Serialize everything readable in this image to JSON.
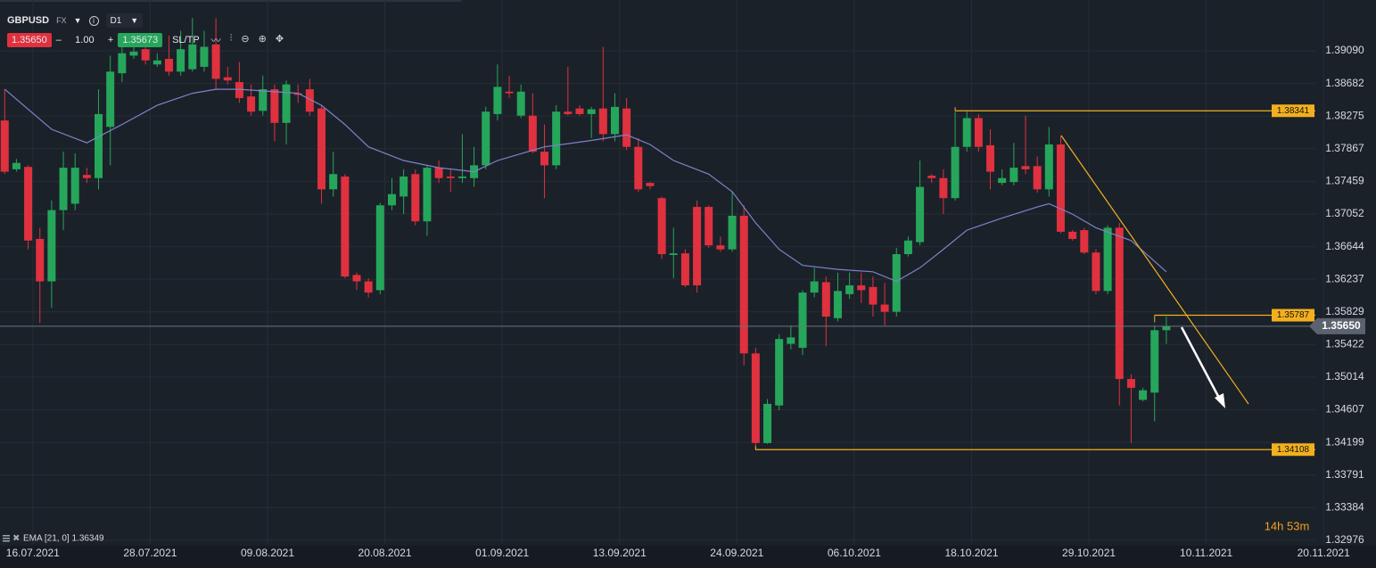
{
  "toolbar": {
    "symbol": "GBPUSD",
    "market": "FX",
    "timeframe": "D1",
    "sell": "1.35650",
    "minus": "–",
    "quantity": "1.00",
    "plus": "+",
    "buy": "1.35673",
    "sltp": "SL/TP"
  },
  "chart_data": {
    "type": "candlestick",
    "open": [
      1.3822,
      1.3761,
      1.3764,
      1.3674,
      1.3621,
      1.371,
      1.3718,
      1.3754,
      1.375,
      1.3814,
      1.3881,
      1.3903,
      1.3911,
      1.3892,
      1.3899,
      1.3883,
      1.3886,
      1.3889,
      1.3917,
      1.3876,
      1.387,
      1.3852,
      1.3834,
      1.3861,
      1.3819,
      1.3856,
      1.3861,
      1.3837,
      1.3736,
      1.3752,
      1.3629,
      1.3621,
      1.361,
      1.3716,
      1.3727,
      1.3755,
      1.3696,
      1.3763,
      1.3752,
      1.375,
      1.375,
      1.3766,
      1.383,
      1.3858,
      1.3828,
      1.3828,
      1.3783,
      1.3766,
      1.3833,
      1.3837,
      1.383,
      1.3837,
      1.3805,
      1.3837,
      1.3789,
      1.3744,
      1.3725,
      1.3654,
      1.3656,
      1.3714,
      1.3714,
      1.3666,
      1.3661,
      1.3703,
      1.3531,
      1.3419,
      1.3466,
      1.3543,
      1.3538,
      1.3607,
      1.362,
      1.3575,
      1.3605,
      1.3616,
      1.3614,
      1.3592,
      1.3583,
      1.3655,
      1.367,
      1.3753,
      1.375,
      1.3725,
      1.3789,
      1.3825,
      1.3791,
      1.3744,
      1.3745,
      1.3765,
      1.3765,
      1.3736,
      1.3792,
      1.3683,
      1.3685,
      1.3657,
      1.3609,
      1.3688,
      1.3499,
      1.3473,
      1.3482,
      1.356
    ],
    "high": [
      1.3861,
      1.3774,
      1.3766,
      1.3688,
      1.3722,
      1.3783,
      1.3781,
      1.3763,
      1.3861,
      1.3903,
      1.3917,
      1.3917,
      1.3928,
      1.3906,
      1.3928,
      1.3934,
      1.395,
      1.3934,
      1.395,
      1.3889,
      1.3895,
      1.3867,
      1.3878,
      1.3867,
      1.3872,
      1.3867,
      1.3874,
      1.3841,
      1.3783,
      1.3755,
      1.3632,
      1.3625,
      1.3719,
      1.375,
      1.3761,
      1.3761,
      1.3766,
      1.3772,
      1.3761,
      1.3805,
      1.3789,
      1.3839,
      1.3892,
      1.3878,
      1.3867,
      1.3856,
      1.3817,
      1.3841,
      1.3889,
      1.3841,
      1.3839,
      1.3914,
      1.3856,
      1.385,
      1.38,
      1.3745,
      1.3727,
      1.3688,
      1.3661,
      1.3722,
      1.3716,
      1.3677,
      1.3733,
      1.3716,
      1.3538,
      1.3474,
      1.3555,
      1.3566,
      1.361,
      1.3638,
      1.3627,
      1.3632,
      1.3632,
      1.3632,
      1.3627,
      1.3619,
      1.3663,
      1.3677,
      1.3772,
      1.3755,
      1.3761,
      1.3833,
      1.3833,
      1.383,
      1.3811,
      1.3761,
      1.3794,
      1.3828,
      1.3777,
      1.3814,
      1.3803,
      1.3685,
      1.3688,
      1.3661,
      1.3691,
      1.3694,
      1.3505,
      1.3488,
      1.3566,
      1.3577
    ],
    "low": [
      1.3755,
      1.3758,
      1.3661,
      1.3569,
      1.3588,
      1.3685,
      1.371,
      1.3744,
      1.3736,
      1.3766,
      1.387,
      1.3899,
      1.3892,
      1.3889,
      1.3878,
      1.3878,
      1.3883,
      1.3883,
      1.3861,
      1.3867,
      1.3844,
      1.3828,
      1.3828,
      1.3796,
      1.3792,
      1.3844,
      1.3828,
      1.3718,
      1.3727,
      1.3625,
      1.361,
      1.3601,
      1.3605,
      1.371,
      1.3705,
      1.3691,
      1.3678,
      1.3744,
      1.3733,
      1.3744,
      1.3739,
      1.3761,
      1.3822,
      1.385,
      1.3825,
      1.3781,
      1.3725,
      1.3761,
      1.3828,
      1.3828,
      1.38,
      1.3796,
      1.3796,
      1.3785,
      1.3733,
      1.3736,
      1.3649,
      1.3625,
      1.3614,
      1.3607,
      1.3663,
      1.3658,
      1.3658,
      1.3516,
      1.341,
      1.3418,
      1.346,
      1.3536,
      1.3529,
      1.3601,
      1.354,
      1.3571,
      1.3599,
      1.3594,
      1.3577,
      1.3566,
      1.3577,
      1.3652,
      1.3666,
      1.3744,
      1.3705,
      1.3722,
      1.3783,
      1.3783,
      1.3736,
      1.3741,
      1.3741,
      1.3755,
      1.3732,
      1.3727,
      1.3681,
      1.3672,
      1.3655,
      1.3605,
      1.3605,
      1.3466,
      1.3419,
      1.3471,
      1.3446,
      1.3543
    ],
    "close": [
      1.3758,
      1.3769,
      1.3672,
      1.3621,
      1.371,
      1.3763,
      1.3763,
      1.375,
      1.383,
      1.3883,
      1.3906,
      1.3908,
      1.3897,
      1.3897,
      1.3883,
      1.3911,
      1.3917,
      1.3914,
      1.3874,
      1.3872,
      1.385,
      1.3833,
      1.3861,
      1.3819,
      1.3867,
      1.3854,
      1.3833,
      1.3736,
      1.3755,
      1.3627,
      1.3621,
      1.3607,
      1.3716,
      1.373,
      1.3752,
      1.3696,
      1.3763,
      1.375,
      1.375,
      1.3752,
      1.3766,
      1.3833,
      1.3864,
      1.3856,
      1.3858,
      1.3783,
      1.3766,
      1.3833,
      1.383,
      1.383,
      1.3836,
      1.3805,
      1.3839,
      1.3789,
      1.3736,
      1.374,
      1.3655,
      1.3656,
      1.3616,
      1.3616,
      1.3666,
      1.3661,
      1.3703,
      1.3531,
      1.3419,
      1.3468,
      1.3549,
      1.3551,
      1.3607,
      1.3621,
      1.3577,
      1.3609,
      1.3616,
      1.361,
      1.3592,
      1.3583,
      1.3655,
      1.3672,
      1.3739,
      1.375,
      1.3725,
      1.3789,
      1.3825,
      1.3789,
      1.3758,
      1.375,
      1.3763,
      1.3761,
      1.3736,
      1.3792,
      1.3683,
      1.3674,
      1.3657,
      1.3609,
      1.3688,
      1.3499,
      1.3488,
      1.3485,
      1.356,
      1.3565
    ],
    "up_color": "#26a65b",
    "down_color": "#e0313f",
    "xlim": [
      -0.4,
      111.7
    ],
    "xticks": [
      {
        "value": 2.4,
        "label": "16.07.2021"
      },
      {
        "value": 12.4,
        "label": "28.07.2021"
      },
      {
        "value": 22.4,
        "label": "09.08.2021"
      },
      {
        "value": 32.4,
        "label": "20.08.2021"
      },
      {
        "value": 42.4,
        "label": "01.09.2021"
      },
      {
        "value": 52.4,
        "label": "13.09.2021"
      },
      {
        "value": 62.4,
        "label": "24.09.2021"
      },
      {
        "value": 72.4,
        "label": "06.10.2021"
      },
      {
        "value": 82.4,
        "label": "18.10.2021"
      },
      {
        "value": 92.4,
        "label": "29.10.2021"
      },
      {
        "value": 102.4,
        "label": "10.11.2021"
      },
      {
        "value": 112.4,
        "label": "20.11.2021"
      }
    ],
    "ylim": [
      1.3293,
      1.39725
    ],
    "yticks": [
      {
        "value": 1.3909,
        "label": "1.39090"
      },
      1.38682,
      1.38275,
      1.37867,
      1.37459,
      1.37052,
      1.36644,
      1.36237,
      1.35829,
      1.35422,
      1.35014,
      1.34607,
      1.34199,
      1.33791,
      1.33384,
      1.32976
    ],
    "grid": true,
    "indicator": {
      "name": "EMA [21, 0] 1.36349",
      "color": "#7c84c8",
      "x": [
        0,
        4,
        7,
        10,
        13,
        16,
        18,
        20,
        25,
        27,
        29,
        31,
        34,
        37,
        40,
        42,
        46,
        50,
        53,
        55,
        57,
        60,
        62,
        64,
        66,
        68,
        71,
        74,
        76,
        78,
        80,
        82,
        85,
        88,
        89,
        91,
        93,
        96,
        99
      ],
      "values": [
        1.3861,
        1.3811,
        1.3794,
        1.3817,
        1.3841,
        1.3856,
        1.3861,
        1.3861,
        1.3856,
        1.3841,
        1.3817,
        1.3789,
        1.3772,
        1.3763,
        1.3758,
        1.3772,
        1.3789,
        1.3797,
        1.3804,
        1.3792,
        1.3772,
        1.3755,
        1.3733,
        1.3694,
        1.3661,
        1.3641,
        1.3636,
        1.3633,
        1.3621,
        1.3638,
        1.3661,
        1.3685,
        1.37,
        1.3714,
        1.3718,
        1.3705,
        1.3688,
        1.3672,
        1.3633
      ]
    },
    "current_price": {
      "value": 1.3565,
      "label": "1.35650"
    },
    "levels": {
      "values": [
        1.38341,
        1.35787,
        1.34108
      ],
      "start": [
        81,
        98,
        64
      ],
      "color": "#f2b01e"
    },
    "timer": "14h 53m"
  }
}
